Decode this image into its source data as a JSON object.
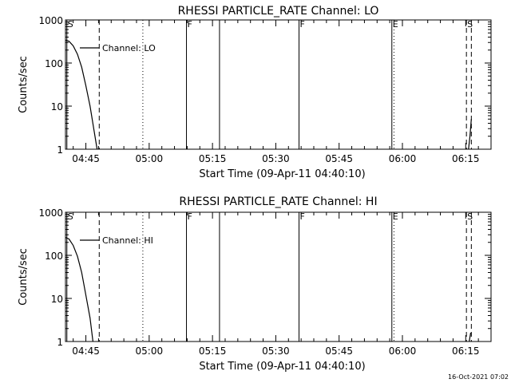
{
  "footer_date": "16-Oct-2021 07:02",
  "chart_data": [
    {
      "type": "line",
      "title": "RHESSI PARTICLE_RATE Channel: LO",
      "xlabel": "Start Time (09-Apr-11 04:40:10)",
      "ylabel": "Counts/sec",
      "yscale": "log",
      "ylim": [
        1,
        1000
      ],
      "xlim": [
        "04:40:10",
        "06:21:00"
      ],
      "xticks": [
        "04:45",
        "05:00",
        "05:15",
        "05:30",
        "05:45",
        "06:00",
        "06:15"
      ],
      "yticks": [
        "1",
        "10",
        "100",
        "1000"
      ],
      "legend": {
        "position": "top-left",
        "label": "Channel: LO"
      },
      "series": [
        {
          "name": "Channel: LO",
          "segments": [
            [
              [
                "04:40:10",
                340
              ],
              [
                "04:41:00",
                320
              ],
              [
                "04:42:00",
                250
              ],
              [
                "04:43:00",
                160
              ],
              [
                "04:44:00",
                80
              ],
              [
                "04:45:00",
                30
              ],
              [
                "04:46:00",
                10
              ],
              [
                "04:47:00",
                2.5
              ],
              [
                "04:47:40",
                1
              ]
            ],
            [
              [
                "06:15:40",
                1
              ],
              [
                "06:16:00",
                2
              ],
              [
                "06:16:20",
                5
              ]
            ]
          ]
        }
      ],
      "markers": [
        {
          "time": "04:40:30",
          "style": "solid",
          "label": "S"
        },
        {
          "time": "04:48:10",
          "style": "dashed",
          "label": ""
        },
        {
          "time": "04:58:30",
          "style": "dotted",
          "label": ""
        },
        {
          "time": "05:08:50",
          "style": "solid",
          "label": "F"
        },
        {
          "time": "05:16:40",
          "style": "solid",
          "label": ""
        },
        {
          "time": "05:35:30",
          "style": "solid",
          "label": "F"
        },
        {
          "time": "05:57:30",
          "style": "solid",
          "label": "E"
        },
        {
          "time": "05:58:00",
          "style": "dotted",
          "label": ""
        },
        {
          "time": "06:15:10",
          "style": "dashed",
          "label": "S"
        },
        {
          "time": "06:16:20",
          "style": "dashed",
          "label": ""
        }
      ]
    },
    {
      "type": "line",
      "title": "RHESSI PARTICLE_RATE Channel: HI",
      "xlabel": "Start Time (09-Apr-11 04:40:10)",
      "ylabel": "Counts/sec",
      "yscale": "log",
      "ylim": [
        1,
        1000
      ],
      "xlim": [
        "04:40:10",
        "06:21:00"
      ],
      "xticks": [
        "04:45",
        "05:00",
        "05:15",
        "05:30",
        "05:45",
        "06:00",
        "06:15"
      ],
      "yticks": [
        "1",
        "10",
        "100",
        "1000"
      ],
      "legend": {
        "position": "top-left",
        "label": "Channel: HI"
      },
      "series": [
        {
          "name": "Channel: HI",
          "segments": [
            [
              [
                "04:40:10",
                260
              ],
              [
                "04:41:00",
                240
              ],
              [
                "04:42:00",
                170
              ],
              [
                "04:43:00",
                95
              ],
              [
                "04:44:00",
                40
              ],
              [
                "04:45:00",
                12
              ],
              [
                "04:46:00",
                3.5
              ],
              [
                "04:46:40",
                1
              ]
            ],
            [
              [
                "06:15:50",
                1
              ],
              [
                "06:16:10",
                1.6
              ]
            ]
          ]
        }
      ],
      "markers": [
        {
          "time": "04:40:30",
          "style": "solid",
          "label": "S"
        },
        {
          "time": "04:48:10",
          "style": "dashed",
          "label": ""
        },
        {
          "time": "04:58:30",
          "style": "dotted",
          "label": ""
        },
        {
          "time": "05:08:50",
          "style": "solid",
          "label": "F"
        },
        {
          "time": "05:16:40",
          "style": "solid",
          "label": ""
        },
        {
          "time": "05:35:30",
          "style": "solid",
          "label": "F"
        },
        {
          "time": "05:57:30",
          "style": "solid",
          "label": "E"
        },
        {
          "time": "05:58:00",
          "style": "dotted",
          "label": ""
        },
        {
          "time": "06:15:10",
          "style": "dashed",
          "label": "S"
        },
        {
          "time": "06:16:20",
          "style": "dashed",
          "label": ""
        }
      ]
    }
  ]
}
